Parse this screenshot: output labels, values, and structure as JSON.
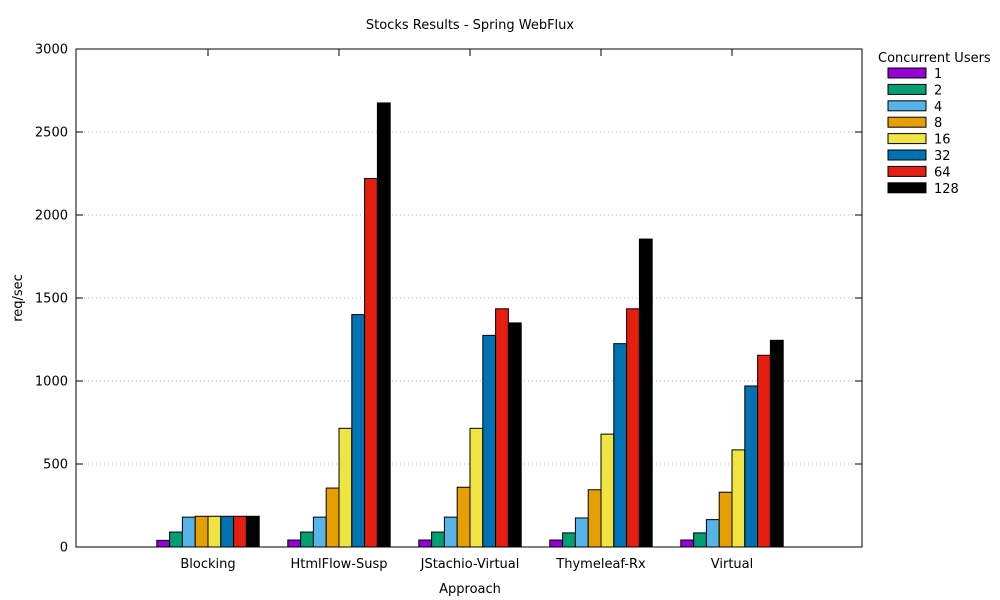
{
  "chart_data": {
    "type": "bar",
    "title": "Stocks Results - Spring WebFlux",
    "xlabel": "Approach",
    "ylabel": "req/sec",
    "ylim": [
      0,
      3000
    ],
    "yticks": [
      0,
      500,
      1000,
      1500,
      2000,
      2500,
      3000
    ],
    "grid": true,
    "legend": {
      "title": "Concurrent Users",
      "placement": "right"
    },
    "categories": [
      "Blocking",
      "HtmlFlow-Susp",
      "JStachio-Virtual",
      "Thymeleaf-Rx",
      "Virtual"
    ],
    "series": [
      {
        "name": "1",
        "color": "#9400d3",
        "values": [
          40,
          42,
          42,
          42,
          42
        ]
      },
      {
        "name": "2",
        "color": "#009e73",
        "values": [
          90,
          90,
          90,
          85,
          85
        ]
      },
      {
        "name": "4",
        "color": "#56b4e9",
        "values": [
          180,
          180,
          180,
          175,
          165
        ]
      },
      {
        "name": "8",
        "color": "#e69f00",
        "values": [
          185,
          355,
          360,
          345,
          330
        ]
      },
      {
        "name": "16",
        "color": "#f0e442",
        "values": [
          185,
          715,
          715,
          680,
          585
        ]
      },
      {
        "name": "32",
        "color": "#0072b2",
        "values": [
          185,
          1400,
          1275,
          1225,
          970
        ]
      },
      {
        "name": "64",
        "color": "#e51e10",
        "values": [
          185,
          2220,
          1435,
          1435,
          1155
        ]
      },
      {
        "name": "128",
        "color": "#000000",
        "values": [
          185,
          2675,
          1350,
          1855,
          1245
        ]
      }
    ]
  }
}
